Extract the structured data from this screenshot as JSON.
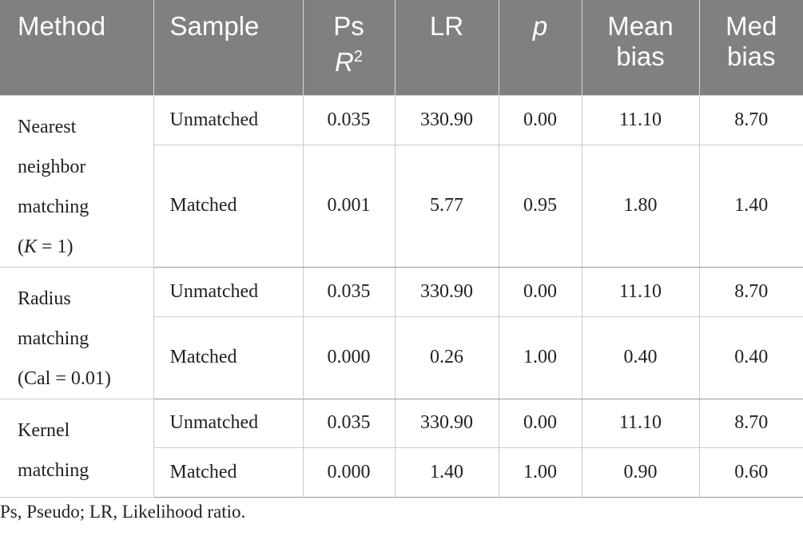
{
  "headers": {
    "method": "Method",
    "sample": "Sample",
    "ps_line1": "Ps",
    "ps_line2_italic": "R",
    "ps_line2_sup": "2",
    "lr": "LR",
    "p": "p",
    "mean_line1": "Mean",
    "mean_line2": "bias",
    "med_line1": "Med",
    "med_line2": "bias"
  },
  "groups": [
    {
      "method_lines": [
        "Nearest",
        "neighbor",
        "matching"
      ],
      "method_param": {
        "open": "(",
        "var": "K",
        "rest": " = 1)"
      },
      "rows": [
        {
          "sample": "Unmatched",
          "ps_r2": "0.035",
          "lr": "330.90",
          "p": "0.00",
          "mean_bias": "11.10",
          "med_bias": "8.70"
        },
        {
          "sample": "Matched",
          "ps_r2": "0.001",
          "lr": "5.77",
          "p": "0.95",
          "mean_bias": "1.80",
          "med_bias": "1.40"
        }
      ]
    },
    {
      "method_lines": [
        "Radius",
        "matching",
        "(Cal = 0.01)"
      ],
      "rows": [
        {
          "sample": "Unmatched",
          "ps_r2": "0.035",
          "lr": "330.90",
          "p": "0.00",
          "mean_bias": "11.10",
          "med_bias": "8.70"
        },
        {
          "sample": "Matched",
          "ps_r2": "0.000",
          "lr": "0.26",
          "p": "1.00",
          "mean_bias": "0.40",
          "med_bias": "0.40"
        }
      ]
    },
    {
      "method_lines": [
        "Kernel",
        "matching"
      ],
      "rows": [
        {
          "sample": "Unmatched",
          "ps_r2": "0.035",
          "lr": "330.90",
          "p": "0.00",
          "mean_bias": "11.10",
          "med_bias": "8.70"
        },
        {
          "sample": "Matched",
          "ps_r2": "0.000",
          "lr": "1.40",
          "p": "1.00",
          "mean_bias": "0.90",
          "med_bias": "0.60"
        }
      ]
    }
  ],
  "footnote": "Ps, Pseudo; LR, Likelihood ratio."
}
